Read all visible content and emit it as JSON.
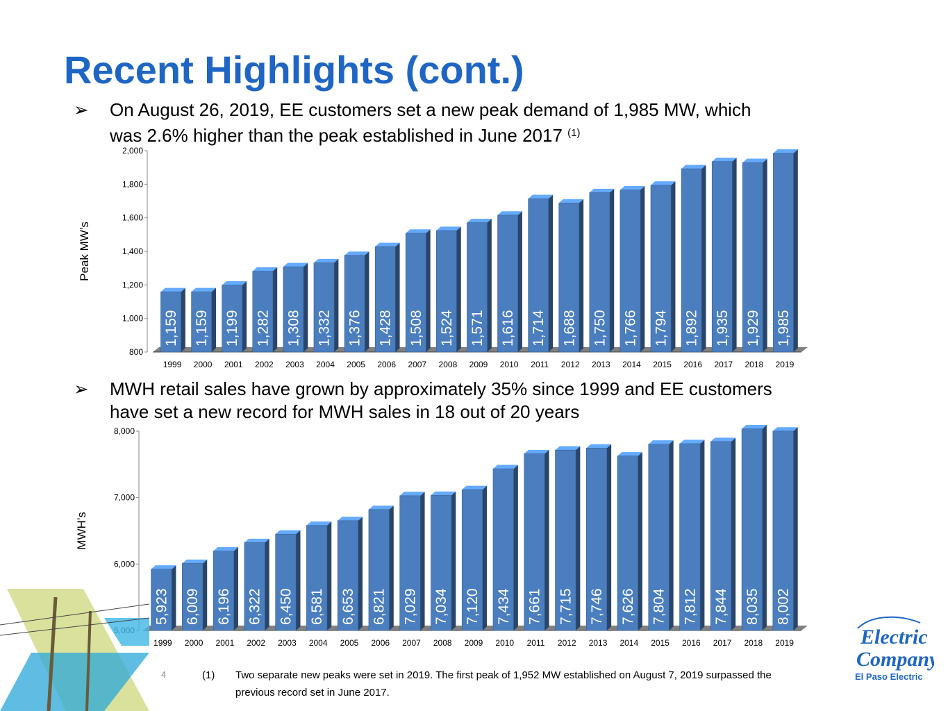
{
  "title": "Recent Highlights (cont.)",
  "bullets": [
    {
      "icon": "arrow-bullet-icon",
      "glyph": "➢",
      "text_line1": "On August 26, 2019, EE customers set a new peak demand of 1,985 MW, which",
      "text_line2": "was 2.6% higher than the peak established in June 2017",
      "superscript": "(1)"
    },
    {
      "icon": "arrow-bullet-icon",
      "glyph": "➢",
      "text_line1": "MWH retail sales have grown by approximately 35% since 1999 and EE customers",
      "text_line2": "have set a new record for MWH sales in 18 out of 20 years"
    }
  ],
  "chart_data": [
    {
      "type": "bar",
      "title": "",
      "ylabel": "Peak MW’s",
      "xlabel": "",
      "categories": [
        "1999",
        "2000",
        "2001",
        "2002",
        "2003",
        "2004",
        "2005",
        "2006",
        "2007",
        "2008",
        "2009",
        "2010",
        "2011",
        "2012",
        "2013",
        "2014",
        "2015",
        "2016",
        "2017",
        "2018",
        "2019"
      ],
      "values": [
        1159,
        1159,
        1199,
        1282,
        1308,
        1332,
        1376,
        1428,
        1508,
        1524,
        1571,
        1616,
        1714,
        1688,
        1750,
        1766,
        1794,
        1892,
        1935,
        1929,
        1985
      ],
      "data_labels": [
        "1,159",
        "1,159",
        "1,199",
        "1,282",
        "1,308",
        "1,332",
        "1,376",
        "1,428",
        "1,508",
        "1,524",
        "1,571",
        "1,616",
        "1,714",
        "1,688",
        "1,750",
        "1,766",
        "1,794",
        "1,892",
        "1,935",
        "1,929",
        "1,985"
      ],
      "ylim": [
        800,
        2000
      ],
      "yticks": [
        800,
        1000,
        1200,
        1400,
        1600,
        1800,
        2000
      ],
      "ytick_labels": [
        "800",
        "1,000",
        "1,200",
        "1,400",
        "1,600",
        "1,800",
        "2,000"
      ],
      "bar_color": "#4a7ebf",
      "floor_color": "#808080"
    },
    {
      "type": "bar",
      "title": "",
      "ylabel": "MWH’s",
      "xlabel": "",
      "categories": [
        "1999",
        "2000",
        "2001",
        "2002",
        "2003",
        "2004",
        "2005",
        "2006",
        "2007",
        "2008",
        "2009",
        "2010",
        "2011",
        "2012",
        "2013",
        "2014",
        "2015",
        "2016",
        "2017",
        "2018",
        "2019"
      ],
      "values": [
        5923,
        6009,
        6196,
        6322,
        6450,
        6581,
        6653,
        6821,
        7029,
        7034,
        7120,
        7434,
        7661,
        7715,
        7746,
        7626,
        7804,
        7812,
        7844,
        8035,
        8002
      ],
      "data_labels": [
        "5,923",
        "6,009",
        "6,196",
        "6,322",
        "6,450",
        "6,581",
        "6,653",
        "6,821",
        "7,029",
        "7,034",
        "7,120",
        "7,434",
        "7,661",
        "7,715",
        "7,746",
        "7,626",
        "7,804",
        "7,812",
        "7,844",
        "8,035",
        "8,002"
      ],
      "ylim": [
        5000,
        8000
      ],
      "yticks": [
        5000,
        6000,
        7000,
        8000
      ],
      "ytick_labels": [
        "5,000",
        "6,000",
        "7,000",
        "8,000"
      ],
      "bar_color": "#4a7ebf",
      "floor_color": "#808080"
    }
  ],
  "page_number": "4",
  "footnote": {
    "mark": "(1)",
    "text": "Two separate new peaks were set in 2019.  The first peak of 1,952 MW established on August 7, 2019 surpassed the previous record set in June 2017."
  },
  "logo": {
    "wordmark_line1": "Electric",
    "wordmark_line2": "Company",
    "brand": "El Paso Electric"
  },
  "colors": {
    "title": "#1f66c4",
    "bar": "#4a7ebf"
  }
}
